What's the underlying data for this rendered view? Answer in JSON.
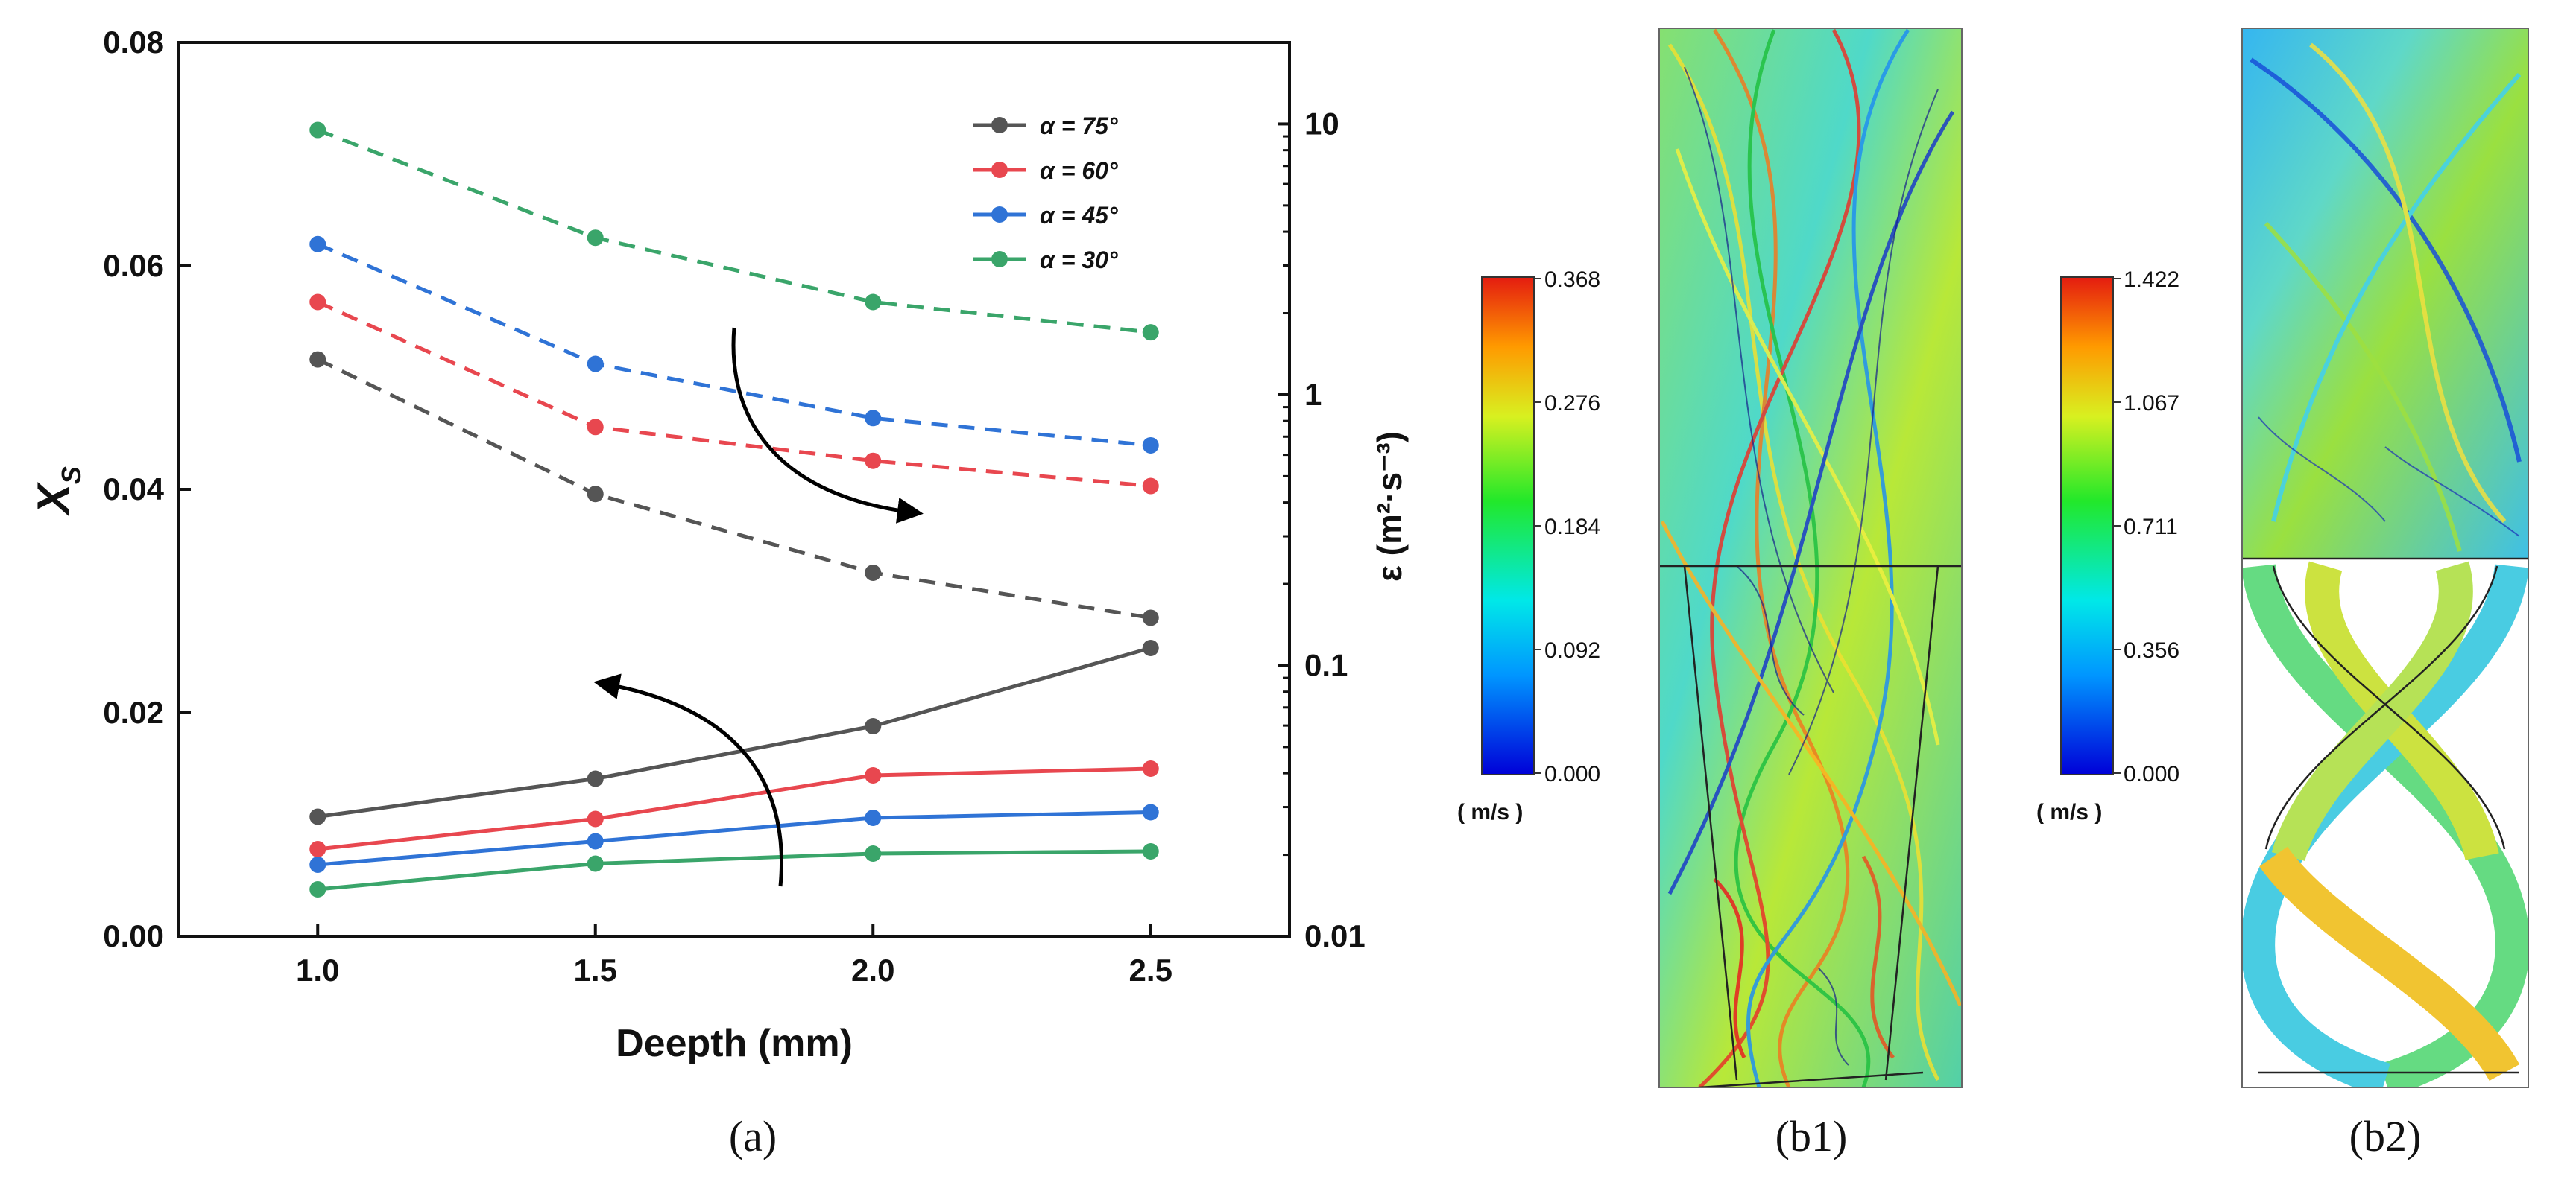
{
  "chart_data": {
    "type": "line",
    "panel_label": "(a)",
    "xlabel": "Deepth (mm)",
    "ylabel_left": "X",
    "ylabel_left_sub": "S",
    "ylabel_right": "ε (m²·s⁻³)",
    "x": [
      1.0,
      1.5,
      2.0,
      2.5
    ],
    "xlim": [
      0.75,
      2.75
    ],
    "x_ticks": [
      "1.0",
      "1.5",
      "2.0",
      "2.5"
    ],
    "ylim_left": [
      0.0,
      0.08
    ],
    "y_ticks_left": [
      "0.00",
      "0.02",
      "0.04",
      "0.06",
      "0.08"
    ],
    "ylim_right_log": [
      0.01,
      20
    ],
    "y_ticks_right": [
      "0.01",
      "0.1",
      "1",
      "10"
    ],
    "series": [
      {
        "name": "α = 75°",
        "color": "#555555",
        "xs_values": [
          0.0107,
          0.0141,
          0.0188,
          0.0258
        ],
        "epsilon_values": [
          1.35,
          0.43,
          0.22,
          0.15
        ]
      },
      {
        "name": "α = 60°",
        "color": "#e8474f",
        "xs_values": [
          0.0078,
          0.0105,
          0.0144,
          0.015
        ],
        "epsilon_values": [
          2.2,
          0.76,
          0.57,
          0.46
        ]
      },
      {
        "name": "α = 45°",
        "color": "#2f73d6",
        "xs_values": [
          0.0064,
          0.0085,
          0.0106,
          0.0111
        ],
        "epsilon_values": [
          3.6,
          1.3,
          0.82,
          0.65
        ]
      },
      {
        "name": "α = 30°",
        "color": "#3aa56a",
        "xs_values": [
          0.0042,
          0.0065,
          0.0074,
          0.0076
        ],
        "epsilon_values": [
          9.5,
          3.8,
          2.2,
          1.7
        ]
      }
    ],
    "legend_position": "top-right"
  },
  "contours": [
    {
      "label": "(b1)",
      "colorbar_ticks": [
        "0.368",
        "0.276",
        "0.184",
        "0.092",
        "0.000"
      ],
      "unit": "( m/s )"
    },
    {
      "label": "(b2)",
      "colorbar_ticks": [
        "1.422",
        "1.067",
        "0.711",
        "0.356",
        "0.000"
      ],
      "unit": "( m/s )"
    }
  ]
}
